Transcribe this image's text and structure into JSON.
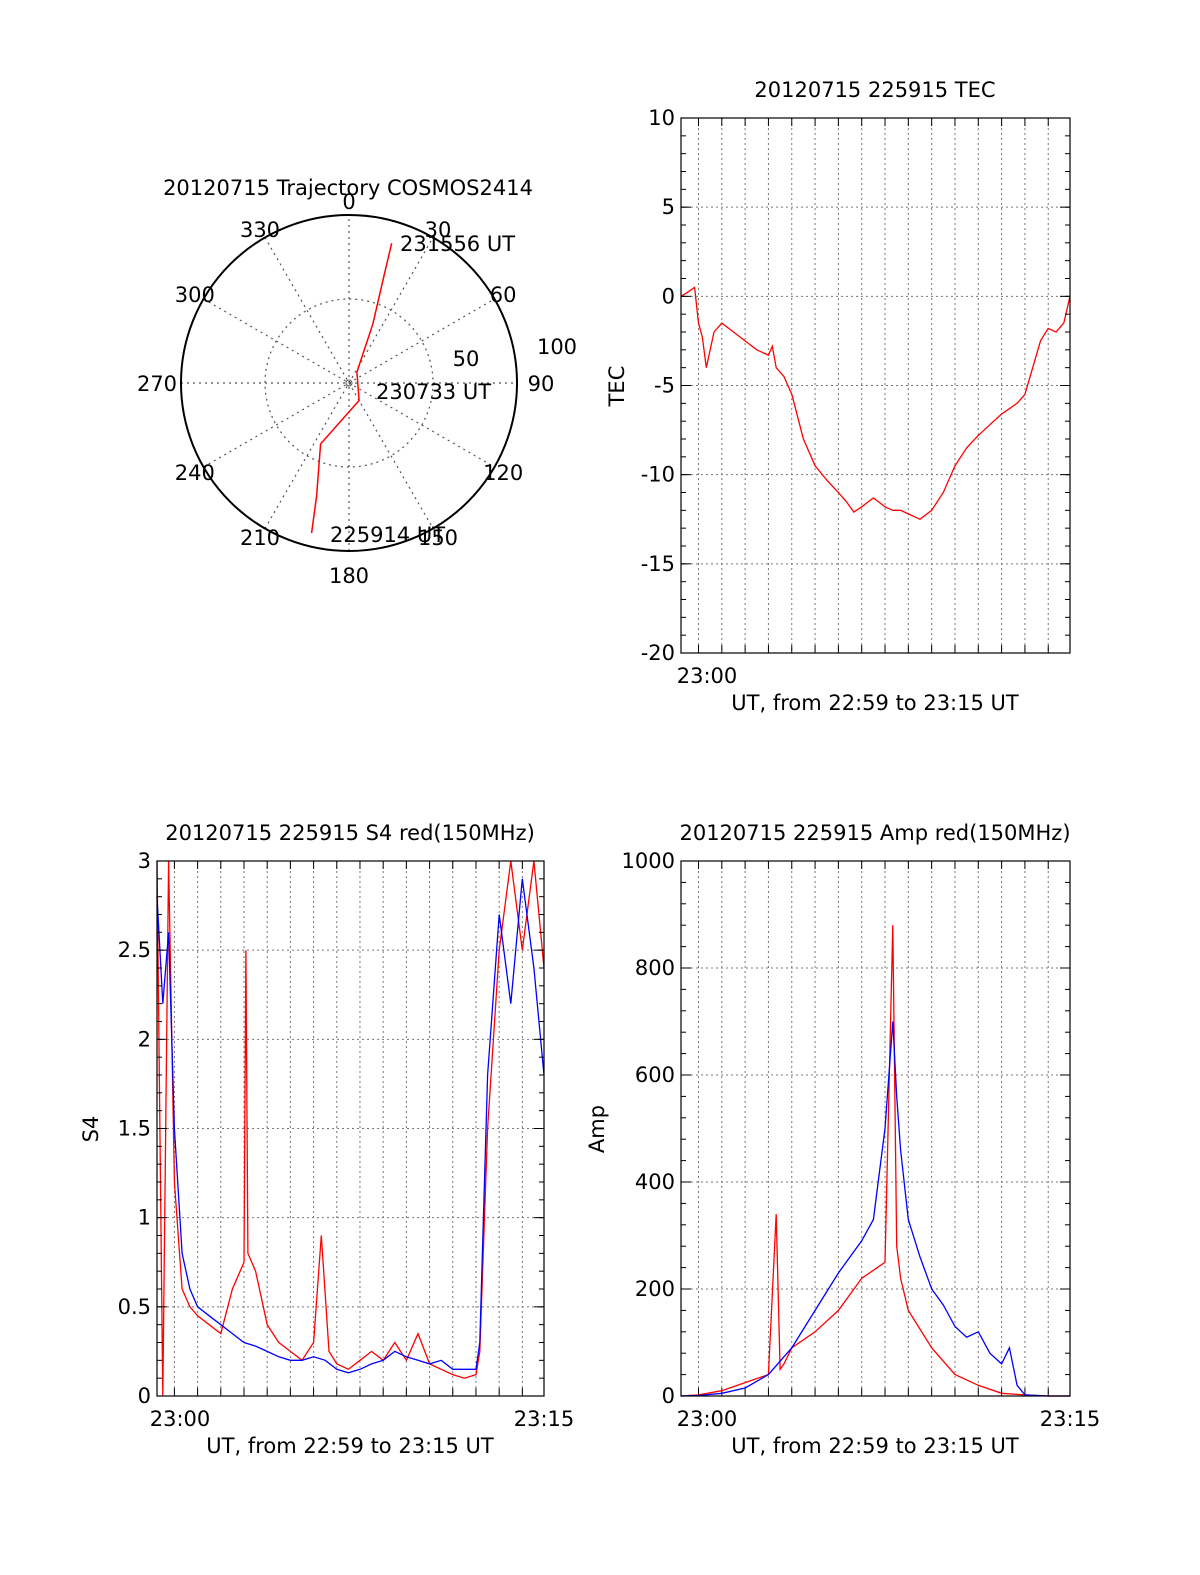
{
  "colors": {
    "red": "#ff0000",
    "blue": "#0000ff",
    "axis": "#000000"
  },
  "panels": {
    "trajectory": {
      "title": "20120715 Trajectory COSMOS2414",
      "azimuth_labels": [
        "0",
        "30",
        "60",
        "90",
        "120",
        "150",
        "180",
        "210",
        "240",
        "270",
        "300",
        "330"
      ],
      "radius_labels": [
        "50",
        "100"
      ],
      "start_label": "225914 UT",
      "mid_label": "230733 UT",
      "end_label": "231556 UT"
    },
    "tec": {
      "title": "20120715 225915 TEC",
      "ylabel": "TEC",
      "xlabel": "UT, from 22:59 to 23:15 UT",
      "xtick": "23:00"
    },
    "s4": {
      "title": "20120715 225915 S4 red(150MHz)",
      "ylabel": "S4",
      "xlabel": "UT, from 22:59 to 23:15 UT",
      "xtick_start": "23:00",
      "xtick_end": "23:15"
    },
    "amp": {
      "title": "20120715 225915 Amp red(150MHz)",
      "ylabel": "Amp",
      "xlabel": "UT, from 22:59 to 23:15 UT",
      "xtick_start": "23:00",
      "xtick_end": "23:15"
    }
  },
  "chart_data": [
    {
      "type": "scatter",
      "subtype": "polar-trajectory",
      "title": "20120715 Trajectory COSMOS2414",
      "radial_range": [
        0,
        100
      ],
      "series": [
        {
          "points": [
            {
              "t": "22:59:14",
              "az": 194,
              "r": 92
            },
            {
              "t": "23:01",
              "az": 196,
              "r": 70
            },
            {
              "t": "23:03",
              "az": 205,
              "r": 40
            },
            {
              "t": "23:05",
              "az": 150,
              "r": 12
            },
            {
              "t": "23:07:33",
              "az": 36,
              "r": 8
            },
            {
              "t": "23:10",
              "az": 22,
              "r": 38
            },
            {
              "t": "23:13",
              "az": 18,
              "r": 68
            },
            {
              "t": "23:15:56",
              "az": 17,
              "r": 87
            }
          ]
        }
      ],
      "color": "#ff0000"
    },
    {
      "type": "line",
      "title": "20120715 225915 TEC",
      "xlabel": "UT, from 22:59 to 23:15 UT",
      "ylabel": "TEC",
      "xlim": [
        "22:59:15",
        "23:15:56"
      ],
      "ylim": [
        -20,
        10
      ],
      "yticks": [
        -20,
        -15,
        -10,
        -5,
        0,
        5,
        10
      ],
      "grid": true,
      "series": [
        {
          "color": "#ff0000",
          "x": [
            "22:59:15",
            "22:59:30",
            "22:59:50",
            "23:00",
            "23:00:10",
            "23:00:20",
            "23:00:40",
            "23:01",
            "23:01:30",
            "23:02",
            "23:02:30",
            "23:03",
            "23:03:10",
            "23:03:20",
            "23:03:40",
            "23:04",
            "23:04:30",
            "23:05",
            "23:05:30",
            "23:06",
            "23:06:20",
            "23:06:40",
            "23:07",
            "23:07:30",
            "23:08",
            "23:08:20",
            "23:08:40",
            "23:09",
            "23:09:30",
            "23:10",
            "23:10:30",
            "23:11",
            "23:11:30",
            "23:12",
            "23:12:30",
            "23:13",
            "23:13:20",
            "23:13:40",
            "23:14",
            "23:14:20",
            "23:14:40",
            "23:15",
            "23:15:20",
            "23:15:40",
            "23:15:56"
          ],
          "y": [
            0,
            0.2,
            0.5,
            -1.5,
            -2.3,
            -4,
            -2,
            -1.5,
            -2,
            -2.5,
            -3,
            -3.3,
            -2.8,
            -4,
            -4.5,
            -5.5,
            -8,
            -9.5,
            -10.3,
            -11,
            -11.5,
            -12.1,
            -11.8,
            -11.3,
            -11.8,
            -12,
            -12,
            -12.2,
            -12.5,
            -12,
            -11,
            -9.5,
            -8.5,
            -7.8,
            -7.2,
            -6.6,
            -6.3,
            -6,
            -5.5,
            -4,
            -2.5,
            -1.8,
            -2,
            -1.5,
            0
          ]
        }
      ]
    },
    {
      "type": "line",
      "title": "20120715 225915 S4 red(150MHz)",
      "xlabel": "UT, from 22:59 to 23:15 UT",
      "ylabel": "S4",
      "xlim": [
        "22:59:15",
        "23:15:56"
      ],
      "ylim": [
        0,
        3
      ],
      "yticks": [
        0,
        0.5,
        1,
        1.5,
        2,
        2.5,
        3
      ],
      "grid": true,
      "series": [
        {
          "color": "#ff0000",
          "x": [
            "22:59:15",
            "22:59:30",
            "22:59:45",
            "23:00",
            "23:00:20",
            "23:00:40",
            "23:01",
            "23:01:30",
            "23:02",
            "23:02:30",
            "23:03",
            "23:03:05",
            "23:03:10",
            "23:03:30",
            "23:04",
            "23:04:30",
            "23:05",
            "23:05:30",
            "23:06",
            "23:06:20",
            "23:06:40",
            "23:07",
            "23:07:30",
            "23:08",
            "23:08:30",
            "23:09",
            "23:09:30",
            "23:10",
            "23:10:30",
            "23:11",
            "23:11:30",
            "23:12",
            "23:12:30",
            "23:13",
            "23:13:10",
            "23:13:30",
            "23:14",
            "23:14:30",
            "23:15",
            "23:15:30",
            "23:15:56"
          ],
          "y": [
            3,
            0,
            3,
            1.2,
            0.6,
            0.5,
            0.45,
            0.4,
            0.35,
            0.6,
            0.75,
            2.5,
            0.8,
            0.7,
            0.4,
            0.3,
            0.25,
            0.2,
            0.3,
            0.9,
            0.25,
            0.18,
            0.15,
            0.2,
            0.25,
            0.2,
            0.3,
            0.2,
            0.35,
            0.18,
            0.15,
            0.12,
            0.1,
            0.12,
            0.25,
            1.5,
            2.5,
            3,
            2.5,
            3,
            2.4
          ]
        },
        {
          "color": "#0000ff",
          "x": [
            "22:59:15",
            "22:59:30",
            "22:59:45",
            "23:00",
            "23:00:20",
            "23:00:40",
            "23:01",
            "23:01:30",
            "23:02",
            "23:02:30",
            "23:03",
            "23:03:30",
            "23:04",
            "23:04:30",
            "23:05",
            "23:05:30",
            "23:06",
            "23:06:30",
            "23:07",
            "23:07:30",
            "23:08",
            "23:08:30",
            "23:09",
            "23:09:30",
            "23:10",
            "23:10:30",
            "23:11",
            "23:11:30",
            "23:12",
            "23:12:30",
            "23:13",
            "23:13:10",
            "23:13:30",
            "23:14",
            "23:14:30",
            "23:15",
            "23:15:30",
            "23:15:56"
          ],
          "y": [
            2.8,
            2.2,
            2.6,
            1.5,
            0.8,
            0.6,
            0.5,
            0.45,
            0.4,
            0.35,
            0.3,
            0.28,
            0.25,
            0.22,
            0.2,
            0.2,
            0.22,
            0.2,
            0.15,
            0.13,
            0.15,
            0.18,
            0.2,
            0.25,
            0.22,
            0.2,
            0.18,
            0.2,
            0.15,
            0.15,
            0.15,
            0.3,
            1.8,
            2.7,
            2.2,
            2.9,
            2.4,
            1.8
          ]
        }
      ]
    },
    {
      "type": "line",
      "title": "20120715 225915 Amp red(150MHz)",
      "xlabel": "UT, from 22:59 to 23:15 UT",
      "ylabel": "Amp",
      "xlim": [
        "22:59:15",
        "23:15:56"
      ],
      "ylim": [
        0,
        1000
      ],
      "yticks": [
        0,
        200,
        400,
        600,
        800,
        1000
      ],
      "grid": true,
      "series": [
        {
          "color": "#ff0000",
          "x": [
            "22:59:15",
            "23:00",
            "23:01",
            "23:02",
            "23:03",
            "23:03:20",
            "23:03:30",
            "23:03:40",
            "23:04",
            "23:05",
            "23:06",
            "23:07",
            "23:08",
            "23:08:20",
            "23:08:30",
            "23:08:40",
            "23:09",
            "23:10",
            "23:11",
            "23:12",
            "23:13",
            "23:14",
            "23:15",
            "23:15:56"
          ],
          "y": [
            0,
            2,
            10,
            25,
            40,
            340,
            50,
            60,
            90,
            120,
            160,
            220,
            250,
            880,
            280,
            220,
            160,
            90,
            40,
            20,
            5,
            2,
            0,
            0
          ]
        },
        {
          "color": "#0000ff",
          "x": [
            "22:59:15",
            "23:00",
            "23:01",
            "23:02",
            "23:03",
            "23:04",
            "23:05",
            "23:06",
            "23:07",
            "23:07:30",
            "23:08",
            "23:08:20",
            "23:08:30",
            "23:08:40",
            "23:09",
            "23:09:30",
            "23:10",
            "23:10:30",
            "23:11",
            "23:11:30",
            "23:12",
            "23:12:30",
            "23:13",
            "23:13:20",
            "23:13:40",
            "23:14",
            "23:15",
            "23:15:56"
          ],
          "y": [
            0,
            1,
            5,
            15,
            40,
            90,
            160,
            230,
            290,
            330,
            500,
            700,
            560,
            460,
            330,
            260,
            200,
            170,
            130,
            110,
            120,
            80,
            60,
            90,
            20,
            2,
            0,
            0
          ]
        }
      ]
    }
  ]
}
